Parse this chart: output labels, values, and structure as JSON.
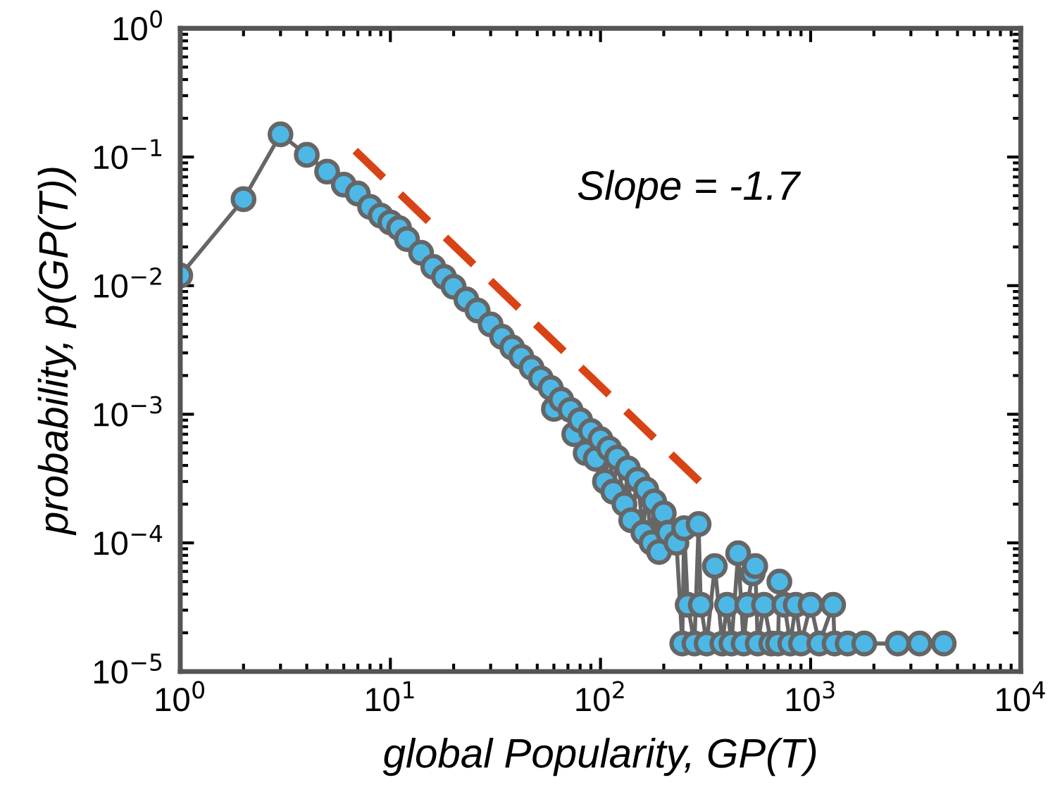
{
  "chart_data": {
    "type": "line",
    "xlabel": "global Popularity, GP(T)",
    "ylabel": "probability, p(GP(T))",
    "log": "xy",
    "grid": false,
    "xlim": [
      1,
      10000
    ],
    "ylim": [
      1e-05,
      1
    ],
    "xticks": [
      {
        "value": 1,
        "label": "10$^{0}$"
      },
      {
        "value": 10,
        "label": "10$^{1}$"
      },
      {
        "value": 100,
        "label": "10$^{2}$"
      },
      {
        "value": 1000,
        "label": "10$^{3}$"
      },
      {
        "value": 10000,
        "label": "10$^{4}$"
      }
    ],
    "yticks": [
      {
        "value": 1e-05,
        "label": "10$^{−5}$"
      },
      {
        "value": 0.0001,
        "label": "10$^{−4}$"
      },
      {
        "value": 0.001,
        "label": "10$^{−3}$"
      },
      {
        "value": 0.01,
        "label": "10$^{−2}$"
      },
      {
        "value": 0.1,
        "label": "10$^{−1}$"
      },
      {
        "value": 1,
        "label": "10$^{0}$"
      }
    ],
    "series": [
      {
        "marker": "circle",
        "line_style": "solid",
        "color": "#4db8e6",
        "x": [
          1,
          2,
          3,
          4,
          5,
          6,
          7,
          8,
          9,
          10,
          11,
          12,
          14,
          16,
          18,
          20,
          23,
          26,
          30,
          34,
          38,
          42,
          47,
          52,
          58,
          60,
          65,
          72,
          75,
          80,
          85,
          90,
          95,
          100,
          105,
          110,
          115,
          120,
          130,
          135,
          140,
          150,
          160,
          165,
          175,
          180,
          190,
          200,
          210,
          230,
          245,
          250,
          260,
          280,
          293,
          300,
          320,
          350,
          380,
          400,
          420,
          452,
          480,
          500,
          530,
          545,
          560,
          600,
          650,
          700,
          710,
          750,
          800,
          850,
          900,
          1000,
          1100,
          1280,
          1300,
          1500,
          1800,
          2600,
          3300,
          4300
        ],
        "values": [
          0.012,
          0.047,
          0.15,
          0.104,
          0.077,
          0.061,
          0.052,
          0.041,
          0.035,
          0.031,
          0.028,
          0.023,
          0.018,
          0.014,
          0.0117,
          0.0098,
          0.0078,
          0.0064,
          0.005,
          0.004,
          0.0033,
          0.0028,
          0.0023,
          0.0019,
          0.0016,
          0.0011,
          0.0013,
          0.00108,
          0.0007,
          0.0009,
          0.0005,
          0.00074,
          0.00045,
          0.00064,
          0.0003,
          0.00054,
          0.00025,
          0.00046,
          0.0002,
          0.00038,
          0.00015,
          0.00031,
          0.00012,
          0.00026,
          0.0001,
          0.00021,
          8.5e-05,
          0.00017,
          0.00012,
          0.0001,
          1.65e-05,
          0.00013,
          3.3e-05,
          1.65e-05,
          0.00014,
          3.3e-05,
          1.65e-05,
          6.6e-05,
          1.65e-05,
          3.3e-05,
          1.65e-05,
          8.3e-05,
          1.65e-05,
          3.3e-05,
          5.8e-05,
          6.6e-05,
          1.65e-05,
          3.3e-05,
          1.65e-05,
          1.65e-05,
          5e-05,
          3.3e-05,
          1.65e-05,
          3.3e-05,
          1.65e-05,
          3.3e-05,
          1.65e-05,
          3.3e-05,
          1.65e-05,
          1.65e-05,
          1.65e-05,
          1.65e-05,
          1.65e-05,
          1.65e-05
        ]
      },
      {
        "type": "line",
        "marker": "none",
        "line_style": "dashed",
        "color": "#d84315",
        "x": [
          6.8,
          302
        ],
        "values": [
          0.112,
          0.00029
        ]
      }
    ],
    "annotations": [
      "Slope = -1.7"
    ]
  }
}
